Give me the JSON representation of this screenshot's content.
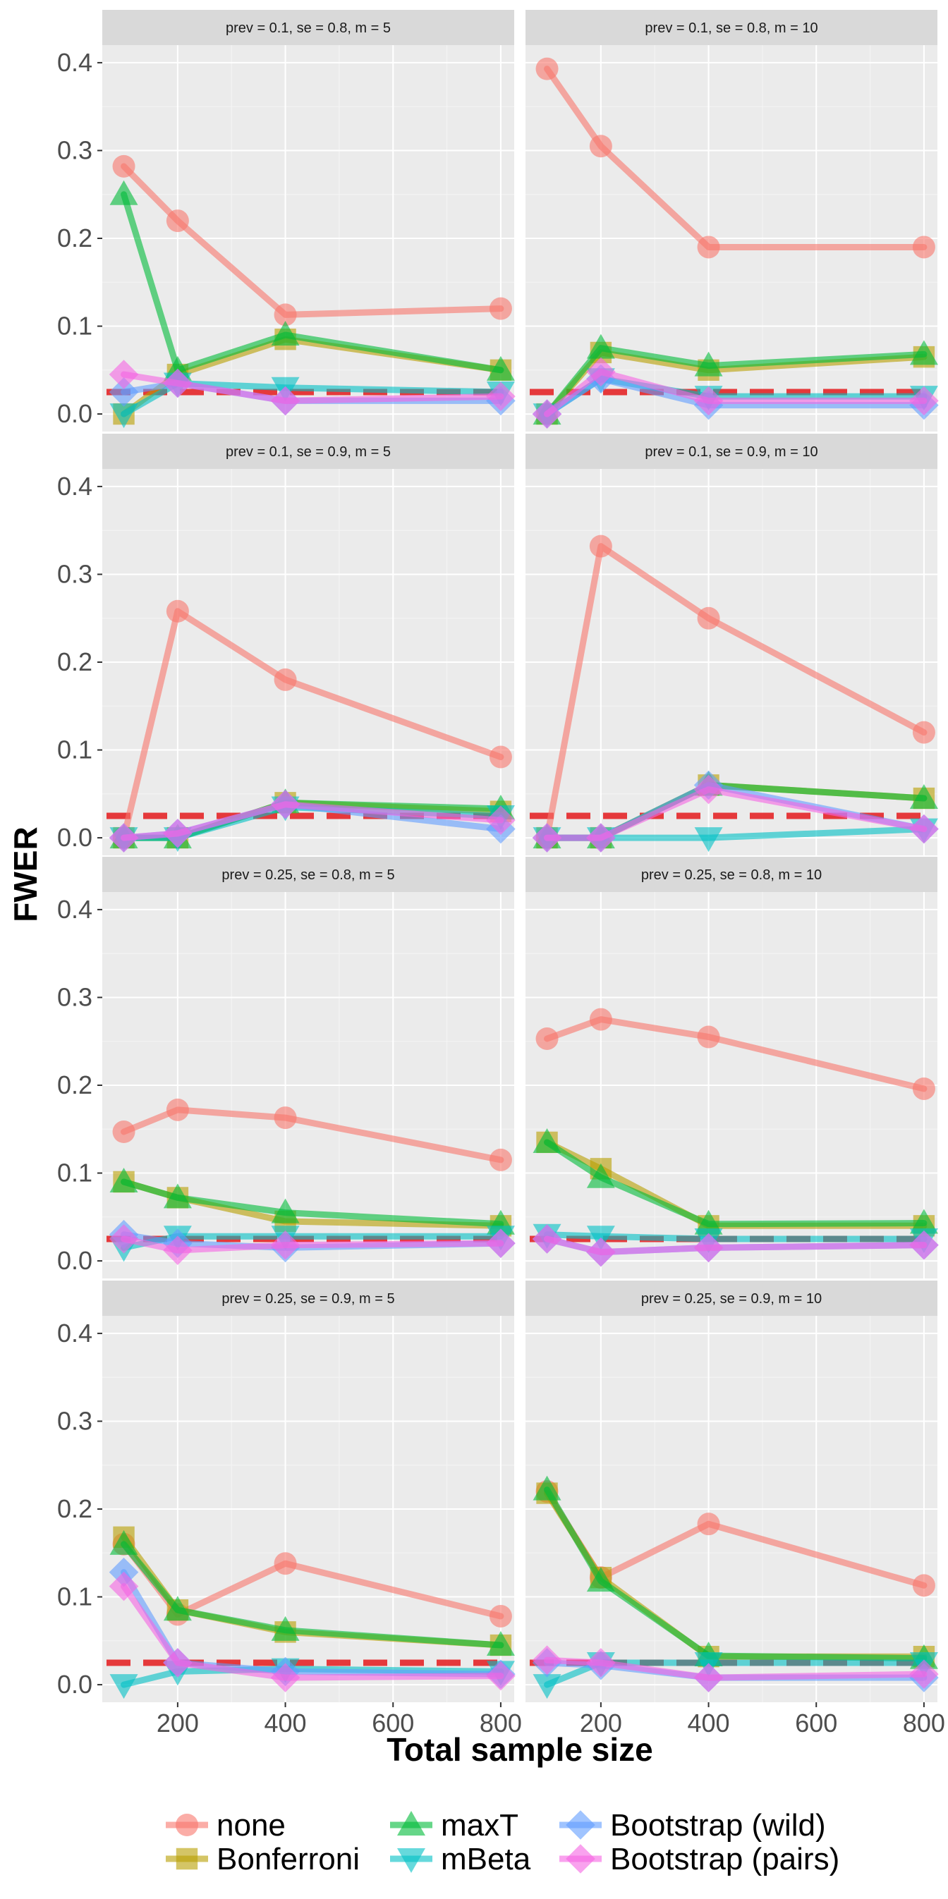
{
  "chart_data": {
    "type": "line",
    "ylabel": "FWER",
    "xlabel": "Total sample size",
    "x": [
      100,
      200,
      400,
      800
    ],
    "x_ticks": [
      200,
      400,
      600,
      800
    ],
    "xlim": [
      60,
      825
    ],
    "y_ticks": [
      0.0,
      0.1,
      0.2,
      0.3,
      0.4
    ],
    "y_tick_labels": [
      "0.0",
      "0.1",
      "0.2",
      "0.3",
      "0.4"
    ],
    "ylim": [
      -0.02,
      0.42
    ],
    "grid": true,
    "reference_line": {
      "y": 0.025,
      "style": "dashed",
      "color": "#E41A1C"
    },
    "legend": {
      "placement": "bottom",
      "entries": [
        {
          "name": "none",
          "color": "#F8766D",
          "shape": "circle"
        },
        {
          "name": "Bonferroni",
          "color": "#B79F00",
          "shape": "square"
        },
        {
          "name": "maxT",
          "color": "#00BA38",
          "shape": "triangle-up"
        },
        {
          "name": "mBeta",
          "color": "#00BFC4",
          "shape": "triangle-down"
        },
        {
          "name": "Bootstrap (wild)",
          "color": "#619CFF",
          "shape": "diamond"
        },
        {
          "name": "Bootstrap (pairs)",
          "color": "#F564E3",
          "shape": "diamond"
        }
      ]
    },
    "panels": [
      {
        "title": "prev =  0.1, se =  0.8, m =  5",
        "series": {
          "none": [
            0.282,
            0.22,
            0.113,
            0.12
          ],
          "Bonferroni": [
            0.0,
            0.045,
            0.085,
            0.05
          ],
          "maxT": [
            0.25,
            0.05,
            0.09,
            0.05
          ],
          "mBeta": [
            0.0,
            0.035,
            0.03,
            0.025
          ],
          "Bootstrap (wild)": [
            0.025,
            0.035,
            0.015,
            0.015
          ],
          "Bootstrap (pairs)": [
            0.045,
            0.035,
            0.015,
            0.02
          ]
        }
      },
      {
        "title": "prev =  0.1, se =  0.8, m =  10",
        "series": {
          "none": [
            0.393,
            0.305,
            0.19,
            0.19
          ],
          "Bonferroni": [
            0.0,
            0.07,
            0.05,
            0.065
          ],
          "maxT": [
            0.0,
            0.075,
            0.055,
            0.068
          ],
          "mBeta": [
            0.0,
            0.04,
            0.02,
            0.02
          ],
          "Bootstrap (wild)": [
            0.0,
            0.04,
            0.01,
            0.01
          ],
          "Bootstrap (pairs)": [
            0.0,
            0.048,
            0.015,
            0.015
          ]
        }
      },
      {
        "title": "prev =  0.1, se =  0.9, m =  5",
        "series": {
          "none": [
            0.0,
            0.258,
            0.18,
            0.092
          ],
          "Bonferroni": [
            0.0,
            0.0,
            0.04,
            0.03
          ],
          "maxT": [
            0.0,
            0.0,
            0.04,
            0.033
          ],
          "mBeta": [
            0.0,
            0.0,
            0.035,
            0.025
          ],
          "Bootstrap (wild)": [
            0.0,
            0.005,
            0.038,
            0.01
          ],
          "Bootstrap (pairs)": [
            0.0,
            0.005,
            0.038,
            0.02
          ]
        }
      },
      {
        "title": "prev =  0.1, se =  0.9, m =  10",
        "series": {
          "none": [
            0.0,
            0.332,
            0.25,
            0.12
          ],
          "Bonferroni": [
            0.0,
            0.0,
            0.06,
            0.045
          ],
          "maxT": [
            0.0,
            0.0,
            0.06,
            0.045
          ],
          "mBeta": [
            0.0,
            0.0,
            0.0,
            0.01
          ],
          "Bootstrap (wild)": [
            0.0,
            0.0,
            0.06,
            0.01
          ],
          "Bootstrap (pairs)": [
            0.0,
            0.0,
            0.055,
            0.01
          ]
        }
      },
      {
        "title": "prev =  0.25, se =  0.8, m =  5",
        "series": {
          "none": [
            0.147,
            0.172,
            0.163,
            0.115
          ],
          "Bonferroni": [
            0.09,
            0.072,
            0.045,
            0.04
          ],
          "maxT": [
            0.09,
            0.072,
            0.055,
            0.042
          ],
          "mBeta": [
            0.015,
            0.028,
            0.028,
            0.028
          ],
          "Bootstrap (wild)": [
            0.03,
            0.02,
            0.015,
            0.02
          ],
          "Bootstrap (pairs)": [
            0.025,
            0.012,
            0.018,
            0.02
          ]
        }
      },
      {
        "title": "prev =  0.25, se =  0.8, m =  10",
        "series": {
          "none": [
            0.253,
            0.275,
            0.255,
            0.196
          ],
          "Bonferroni": [
            0.135,
            0.105,
            0.04,
            0.04
          ],
          "maxT": [
            0.135,
            0.095,
            0.042,
            0.043
          ],
          "mBeta": [
            0.03,
            0.028,
            0.025,
            0.025
          ],
          "Bootstrap (wild)": [
            0.025,
            0.01,
            0.015,
            0.018
          ],
          "Bootstrap (pairs)": [
            0.025,
            0.01,
            0.015,
            0.018
          ]
        }
      },
      {
        "title": "prev =  0.25, se =  0.9, m =  5",
        "series": {
          "none": [
            0.16,
            0.08,
            0.138,
            0.078
          ],
          "Bonferroni": [
            0.168,
            0.085,
            0.06,
            0.045
          ],
          "maxT": [
            0.16,
            0.085,
            0.062,
            0.045
          ],
          "mBeta": [
            0.0,
            0.015,
            0.018,
            0.015
          ],
          "Bootstrap (wild)": [
            0.128,
            0.025,
            0.015,
            0.012
          ],
          "Bootstrap (pairs)": [
            0.112,
            0.025,
            0.008,
            0.01
          ]
        }
      },
      {
        "title": "prev =  0.25, se =  0.9, m =  10",
        "series": {
          "none": [
            0.22,
            0.122,
            0.183,
            0.113
          ],
          "Bonferroni": [
            0.218,
            0.122,
            0.032,
            0.032
          ],
          "maxT": [
            0.222,
            0.118,
            0.033,
            0.03
          ],
          "mBeta": [
            0.0,
            0.025,
            0.025,
            0.025
          ],
          "Bootstrap (wild)": [
            0.025,
            0.022,
            0.008,
            0.008
          ],
          "Bootstrap (pairs)": [
            0.028,
            0.025,
            0.008,
            0.012
          ]
        }
      }
    ]
  }
}
